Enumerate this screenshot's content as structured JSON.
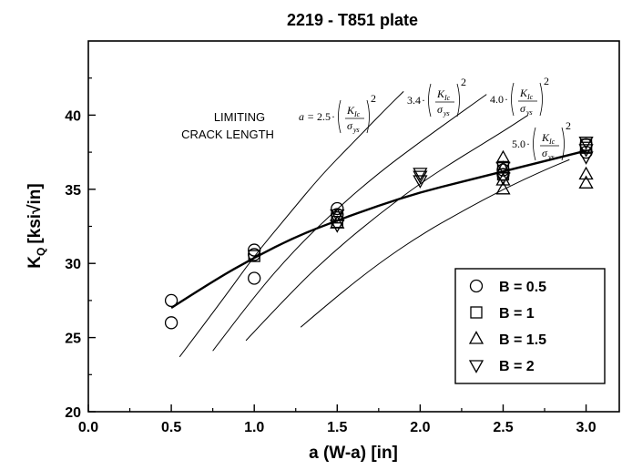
{
  "chart_data": {
    "type": "scatter",
    "title": "2219 - T851 plate",
    "xlabel": "a (W-a) [in]",
    "ylabel_main": "K",
    "ylabel_sub": "Q",
    "ylabel_unit": "[ksi√in]",
    "xlim": [
      0.0,
      3.2
    ],
    "ylim": [
      20,
      45
    ],
    "xticks": [
      "0.0",
      "0.5",
      "1.0",
      "1.5",
      "2.0",
      "2.5",
      "3.0"
    ],
    "yticks": [
      "20",
      "25",
      "30",
      "35",
      "40"
    ],
    "grid": false,
    "legend_position": "bottom-right",
    "series": [
      {
        "name": "B = 0.5",
        "marker": "circle",
        "points": [
          [
            0.5,
            27.5
          ],
          [
            0.5,
            26.0
          ],
          [
            1.0,
            30.9
          ],
          [
            1.0,
            30.6
          ],
          [
            1.0,
            29.0
          ],
          [
            1.5,
            33.7
          ],
          [
            1.5,
            33.3
          ],
          [
            2.5,
            36.3
          ],
          [
            2.5,
            36.0
          ],
          [
            3.0,
            38.0
          ],
          [
            3.0,
            37.5
          ]
        ]
      },
      {
        "name": "B = 1",
        "marker": "square",
        "points": [
          [
            1.0,
            30.5
          ],
          [
            1.5,
            33.1
          ],
          [
            1.5,
            32.8
          ],
          [
            2.5,
            36.5
          ],
          [
            2.5,
            36.0
          ],
          [
            3.0,
            38.0
          ],
          [
            3.0,
            37.8
          ]
        ]
      },
      {
        "name": "B = 1.5",
        "marker": "triangle-up",
        "points": [
          [
            1.5,
            33.2
          ],
          [
            1.5,
            32.7
          ],
          [
            2.5,
            37.1
          ],
          [
            2.5,
            36.4
          ],
          [
            2.5,
            35.6
          ],
          [
            2.5,
            35.0
          ],
          [
            3.0,
            36.0
          ],
          [
            3.0,
            35.4
          ]
        ]
      },
      {
        "name": "B = 2",
        "marker": "triangle-down",
        "points": [
          [
            1.5,
            33.3
          ],
          [
            1.5,
            32.6
          ],
          [
            2.0,
            36.1
          ],
          [
            2.0,
            35.9
          ],
          [
            2.0,
            35.6
          ],
          [
            2.5,
            36.5
          ],
          [
            2.5,
            35.8
          ],
          [
            3.0,
            38.2
          ],
          [
            3.0,
            37.7
          ],
          [
            3.0,
            37.2
          ]
        ]
      }
    ],
    "fit_curve": [
      [
        0.5,
        27.0
      ],
      [
        0.75,
        28.8
      ],
      [
        1.0,
        30.4
      ],
      [
        1.25,
        31.8
      ],
      [
        1.5,
        32.9
      ],
      [
        1.75,
        33.9
      ],
      [
        2.0,
        34.8
      ],
      [
        2.25,
        35.5
      ],
      [
        2.5,
        36.2
      ],
      [
        2.75,
        36.9
      ],
      [
        3.0,
        37.6
      ]
    ],
    "limit_curves": [
      {
        "coef": "2.5",
        "points": [
          [
            0.55,
            23.7
          ],
          [
            0.8,
            27.4
          ],
          [
            1.0,
            30.5
          ],
          [
            1.2,
            33.2
          ],
          [
            1.4,
            35.9
          ],
          [
            1.6,
            38.2
          ],
          [
            1.8,
            40.5
          ],
          [
            1.9,
            41.6
          ]
        ]
      },
      {
        "coef": "3.4",
        "points": [
          [
            0.75,
            24.1
          ],
          [
            1.0,
            27.8
          ],
          [
            1.25,
            31.0
          ],
          [
            1.5,
            33.7
          ],
          [
            1.75,
            36.1
          ],
          [
            2.0,
            38.2
          ],
          [
            2.25,
            40.2
          ],
          [
            2.4,
            41.4
          ]
        ]
      },
      {
        "coef": "4.0",
        "points": [
          [
            0.95,
            24.8
          ],
          [
            1.25,
            28.4
          ],
          [
            1.5,
            31.0
          ],
          [
            1.75,
            33.3
          ],
          [
            2.0,
            35.4
          ],
          [
            2.25,
            37.2
          ],
          [
            2.5,
            38.9
          ],
          [
            2.65,
            40.0
          ]
        ]
      },
      {
        "coef": "5.0",
        "points": [
          [
            1.28,
            25.7
          ],
          [
            1.5,
            27.8
          ],
          [
            1.75,
            30.0
          ],
          [
            2.0,
            31.9
          ],
          [
            2.25,
            33.5
          ],
          [
            2.5,
            35.0
          ],
          [
            2.75,
            36.3
          ],
          [
            2.9,
            37.0
          ]
        ]
      }
    ],
    "annotations": {
      "limit_label_line1": "LIMITING",
      "limit_label_line2": "CRACK LENGTH",
      "eq_lhs": "a = ",
      "eq_dot": "·",
      "eq_K": "K",
      "eq_K_sub": "Ic",
      "eq_sigma": "σ",
      "eq_sigma_sub": "ys",
      "eq_exp": "2"
    }
  }
}
